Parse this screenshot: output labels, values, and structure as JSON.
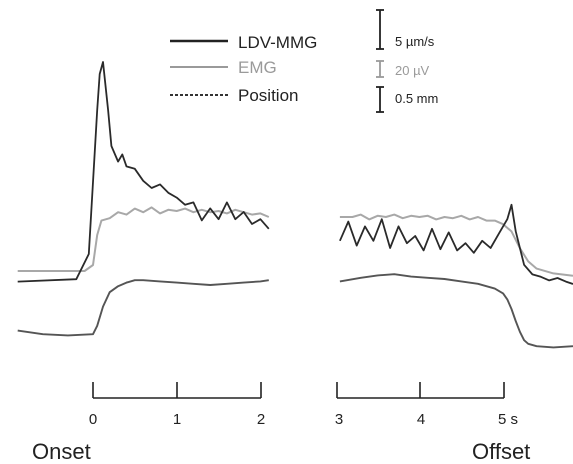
{
  "chart_data": {
    "type": "line",
    "title": "",
    "xlabel": "",
    "ylabel": "",
    "x_unit": "s",
    "panels": [
      {
        "name": "Onset",
        "xlim": [
          0,
          2
        ],
        "ticks": [
          "0",
          "1",
          "2"
        ]
      },
      {
        "name": "Offset",
        "xlim": [
          3,
          5
        ],
        "ticks": [
          "3",
          "4",
          "5 s"
        ]
      }
    ],
    "legend": {
      "placement": "top-center",
      "entries": [
        {
          "name": "LDV-MMG",
          "scale": "5 µm/s",
          "color": "#222222",
          "style": "solid"
        },
        {
          "name": "EMG",
          "scale": "20 µV",
          "color": "#9a9a9a",
          "style": "solid"
        },
        {
          "name": "Position",
          "scale": "0.5 mm",
          "color": "#444444",
          "style": "dotted"
        }
      ]
    },
    "series": [
      {
        "name": "LDV-MMG",
        "onset": {
          "x": [
            -0.9,
            -0.2,
            -0.05,
            0.0,
            0.05,
            0.08,
            0.12,
            0.18,
            0.22,
            0.3,
            0.35,
            0.4,
            0.5,
            0.6,
            0.7,
            0.8,
            0.9,
            1.0,
            1.1,
            1.2,
            1.3,
            1.4,
            1.5,
            1.6,
            1.7,
            1.8,
            1.9,
            2.0,
            2.1
          ],
          "y": [
            0.2,
            0.4,
            2.5,
            8.5,
            14.5,
            17.5,
            18.5,
            14.5,
            11.5,
            10.2,
            10.8,
            9.8,
            9.6,
            8.6,
            8.0,
            8.3,
            7.6,
            7.2,
            6.6,
            6.8,
            5.3,
            6.3,
            5.4,
            6.8,
            5.4,
            6.0,
            5.0,
            5.4,
            4.6
          ]
        },
        "offset": {
          "x": [
            2.95,
            3.05,
            3.15,
            3.25,
            3.35,
            3.45,
            3.55,
            3.65,
            3.75,
            3.85,
            3.95,
            4.05,
            4.15,
            4.25,
            4.35,
            4.45,
            4.55,
            4.65,
            4.75,
            4.85,
            4.95,
            5.0,
            5.05,
            5.15,
            5.25,
            5.35,
            5.45,
            5.55,
            5.65,
            5.8
          ],
          "y": [
            3.6,
            5.2,
            3.2,
            4.8,
            3.6,
            5.4,
            3.0,
            4.8,
            3.4,
            4.0,
            2.8,
            4.6,
            2.9,
            4.3,
            2.8,
            3.4,
            2.6,
            3.6,
            3.0,
            4.2,
            5.4,
            6.6,
            4.4,
            1.6,
            0.8,
            0.6,
            0.3,
            0.5,
            0.2,
            0.0
          ]
        }
      },
      {
        "name": "EMG",
        "onset": {
          "x": [
            -0.9,
            -0.1,
            0.0,
            0.05,
            0.1,
            0.2,
            0.3,
            0.4,
            0.5,
            0.6,
            0.7,
            0.8,
            0.9,
            1.0,
            1.1,
            1.2,
            1.3,
            1.4,
            1.5,
            1.6,
            1.7,
            1.8,
            1.9,
            2.0,
            2.1
          ],
          "y": [
            0.5,
            0.5,
            1.0,
            3.5,
            4.7,
            4.9,
            5.4,
            5.2,
            5.7,
            5.4,
            5.8,
            5.3,
            5.6,
            5.5,
            5.7,
            5.4,
            5.6,
            5.4,
            5.5,
            5.3,
            5.6,
            5.4,
            5.2,
            5.3,
            5.0
          ]
        },
        "offset": {
          "x": [
            2.95,
            3.1,
            3.2,
            3.3,
            3.4,
            3.5,
            3.6,
            3.7,
            3.8,
            3.9,
            4.0,
            4.1,
            4.2,
            4.3,
            4.4,
            4.5,
            4.6,
            4.7,
            4.8,
            4.9,
            5.0,
            5.1,
            5.2,
            5.3,
            5.5,
            5.8
          ],
          "y": [
            5.0,
            5.0,
            5.2,
            4.8,
            5.1,
            5.0,
            5.2,
            4.9,
            5.1,
            5.0,
            5.1,
            4.8,
            5.0,
            4.9,
            5.1,
            4.8,
            5.0,
            4.7,
            4.7,
            4.4,
            3.8,
            2.4,
            1.3,
            0.7,
            0.3,
            0.1
          ]
        }
      },
      {
        "name": "Position",
        "onset": {
          "x": [
            -0.9,
            -0.6,
            -0.3,
            0.0,
            0.05,
            0.12,
            0.2,
            0.3,
            0.4,
            0.5,
            0.6,
            0.8,
            1.0,
            1.2,
            1.4,
            1.6,
            1.8,
            2.0,
            2.1
          ],
          "y": [
            -2.8,
            -3.1,
            -3.2,
            -3.1,
            -2.4,
            -0.8,
            0.4,
            0.9,
            1.2,
            1.4,
            1.4,
            1.3,
            1.2,
            1.1,
            1.0,
            1.1,
            1.2,
            1.3,
            1.4
          ]
        },
        "offset": {
          "x": [
            2.95,
            3.2,
            3.4,
            3.6,
            3.8,
            4.0,
            4.2,
            4.4,
            4.6,
            4.8,
            4.9,
            4.95,
            5.0,
            5.05,
            5.1,
            5.15,
            5.2,
            5.3,
            5.5,
            5.8
          ],
          "y": [
            1.3,
            1.6,
            1.8,
            1.9,
            1.7,
            1.6,
            1.5,
            1.3,
            1.1,
            0.7,
            0.3,
            -0.2,
            -1.0,
            -2.0,
            -2.9,
            -3.6,
            -3.9,
            -4.1,
            -4.2,
            -4.1
          ]
        }
      }
    ]
  }
}
